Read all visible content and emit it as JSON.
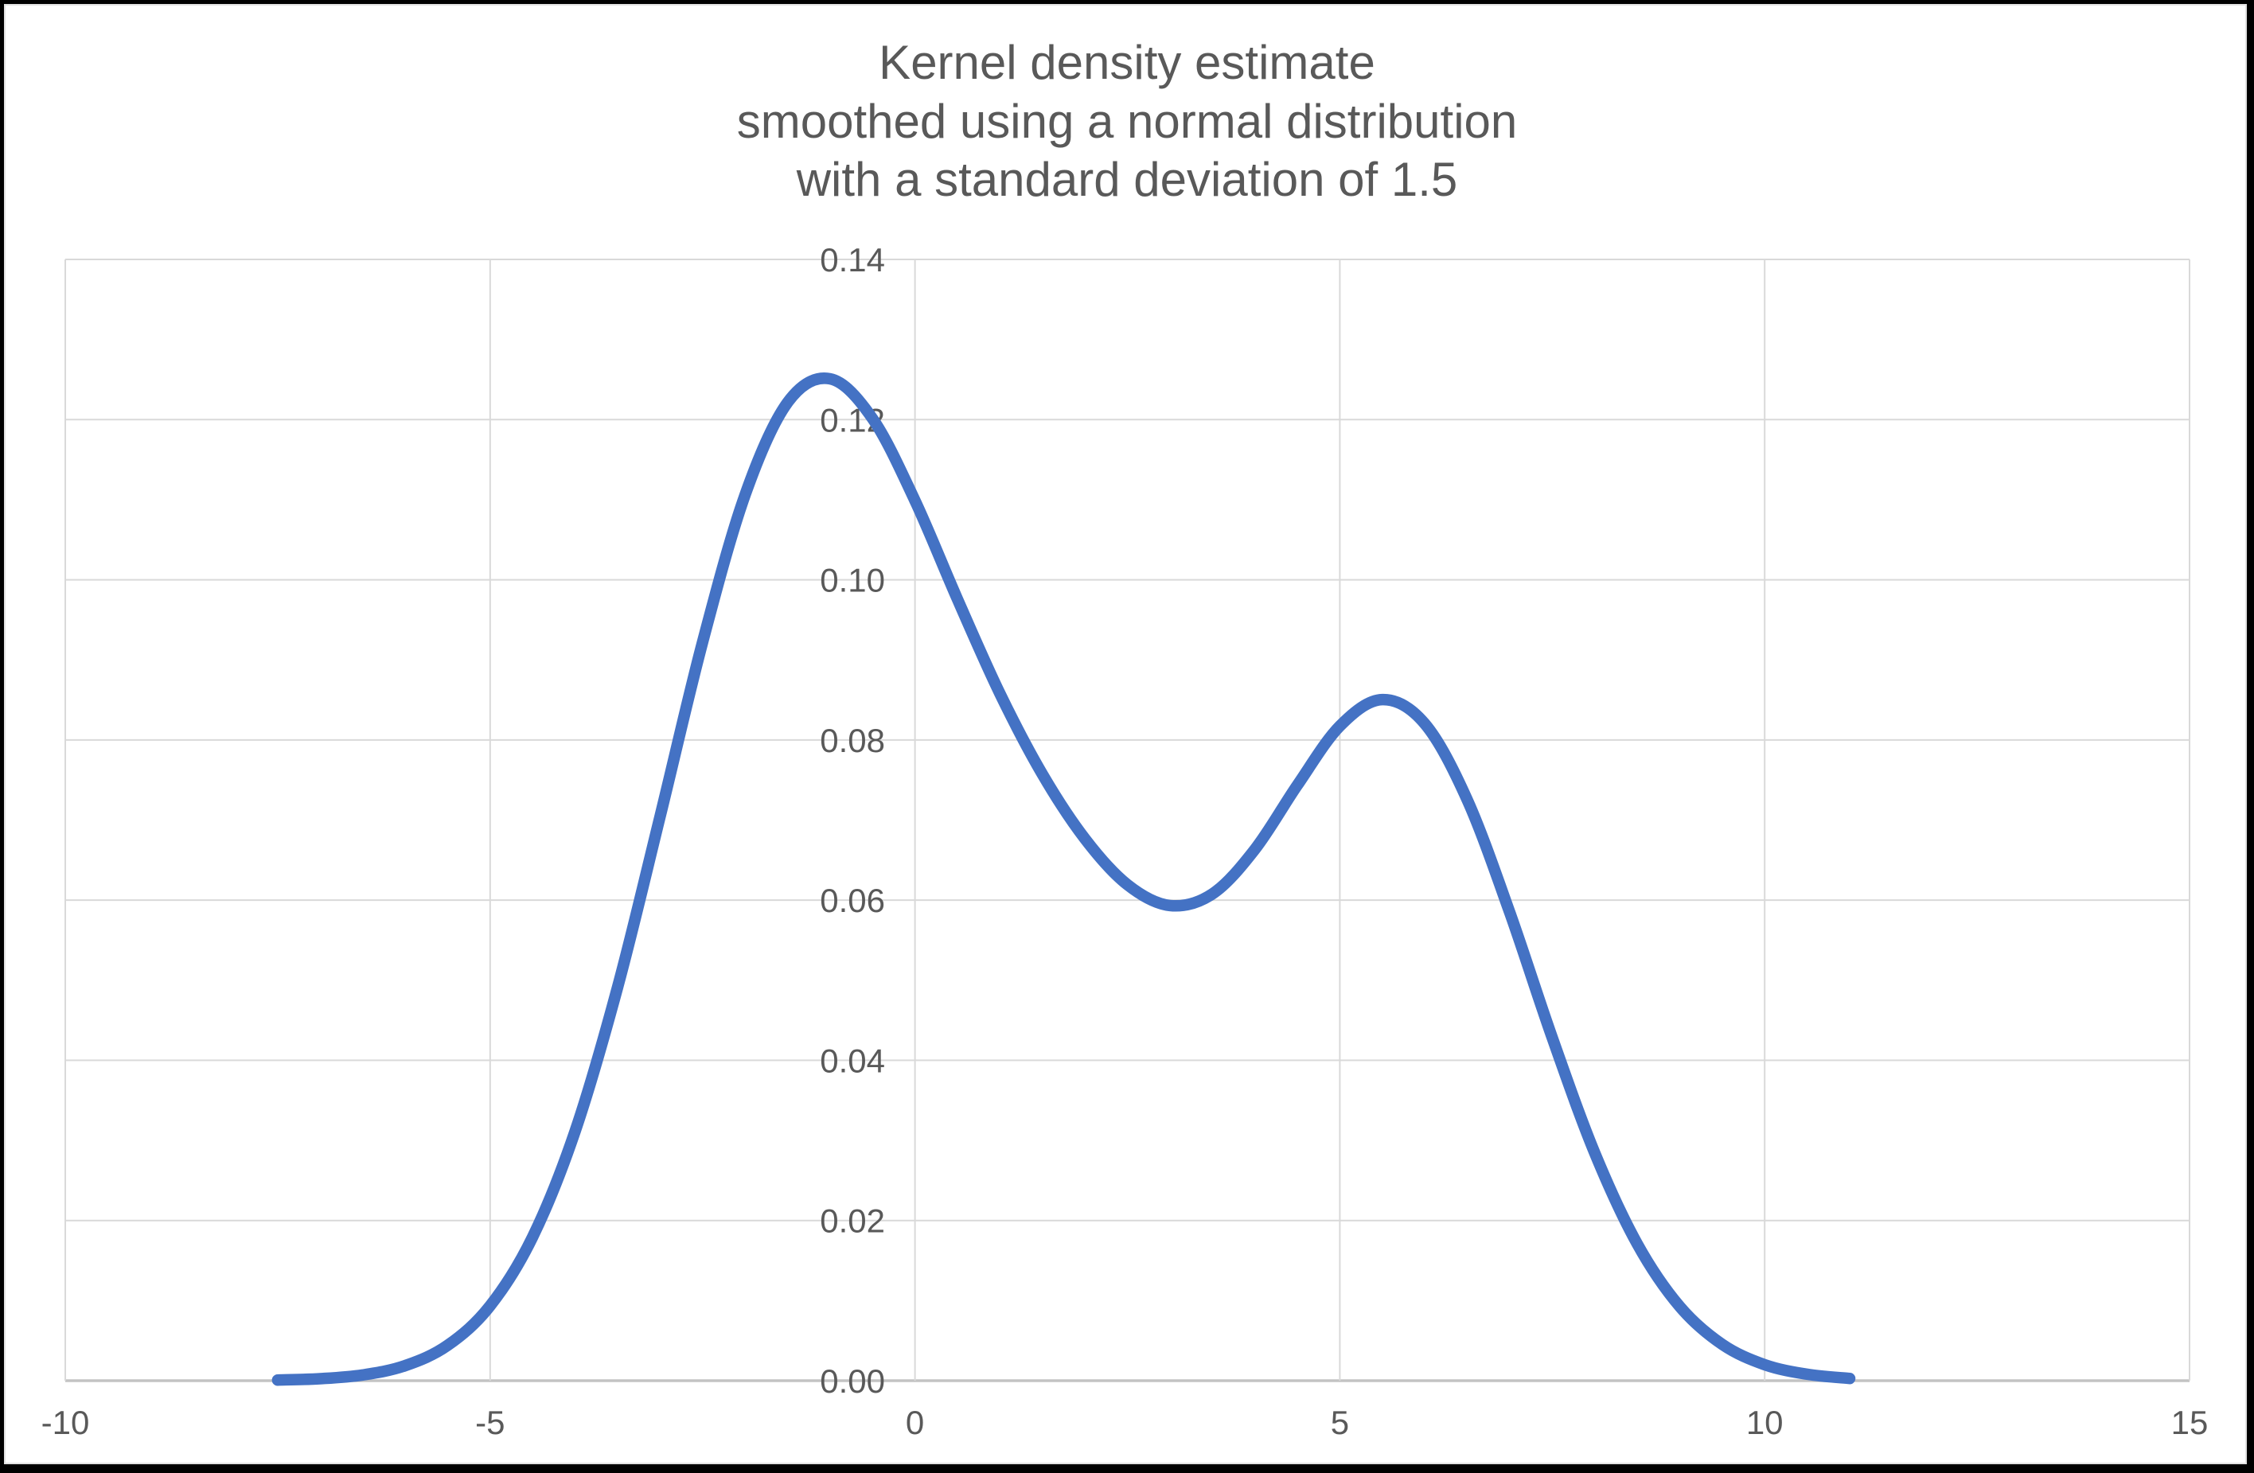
{
  "chart_data": {
    "type": "line",
    "title": "Kernel density estimate smoothed using a normal distribution with a standard deviation of 1.5",
    "title_lines": [
      "Kernel density estimate",
      "smoothed using a normal distribution",
      "with a standard deviation of 1.5"
    ],
    "kernel_standard_deviation": 1.5,
    "xlabel": "",
    "ylabel": "",
    "xlim": [
      -10,
      15
    ],
    "ylim": [
      0,
      0.14
    ],
    "x_ticks": [
      -10,
      -5,
      0,
      5,
      10,
      15
    ],
    "x_tick_labels": [
      "-10",
      "-5",
      "0",
      "5",
      "10",
      "15"
    ],
    "y_ticks": [
      0.0,
      0.02,
      0.04,
      0.06,
      0.08,
      0.1,
      0.12,
      0.14
    ],
    "y_tick_labels": [
      "0.00",
      "0.02",
      "0.04",
      "0.06",
      "0.08",
      "0.10",
      "0.12",
      "0.14"
    ],
    "grid": true,
    "legend": false,
    "series": [
      {
        "name": "Kernel density estimate",
        "color": "#4472C4",
        "x": [
          -7.5,
          -7.0,
          -6.5,
          -6.0,
          -5.5,
          -5.0,
          -4.5,
          -4.0,
          -3.5,
          -3.0,
          -2.5,
          -2.0,
          -1.5,
          -1.0,
          -0.5,
          0.0,
          0.5,
          1.0,
          1.5,
          2.0,
          2.5,
          3.0,
          3.5,
          4.0,
          4.5,
          5.0,
          5.5,
          6.0,
          6.5,
          7.0,
          7.5,
          8.0,
          8.5,
          9.0,
          9.5,
          10.0,
          10.5,
          11.0
        ],
        "y": [
          8e-05,
          0.00025,
          0.00072,
          0.00188,
          0.00441,
          0.00935,
          0.01794,
          0.03115,
          0.0491,
          0.07043,
          0.0922,
          0.11059,
          0.12213,
          0.1251,
          0.12014,
          0.10988,
          0.09757,
          0.08578,
          0.07572,
          0.06767,
          0.06193,
          0.05933,
          0.06078,
          0.06633,
          0.07435,
          0.08173,
          0.08504,
          0.08202,
          0.07252,
          0.05846,
          0.04282,
          0.02843,
          0.01708,
          0.00927,
          0.00454,
          0.002,
          0.0008,
          0.00028
        ]
      }
    ]
  },
  "colors": {
    "line": "#4472C4",
    "gridline": "#D9D9D9",
    "axis_line": "#C3C3C3",
    "text": "#595959",
    "background": "#FFFFFF",
    "frame": "#000000"
  }
}
